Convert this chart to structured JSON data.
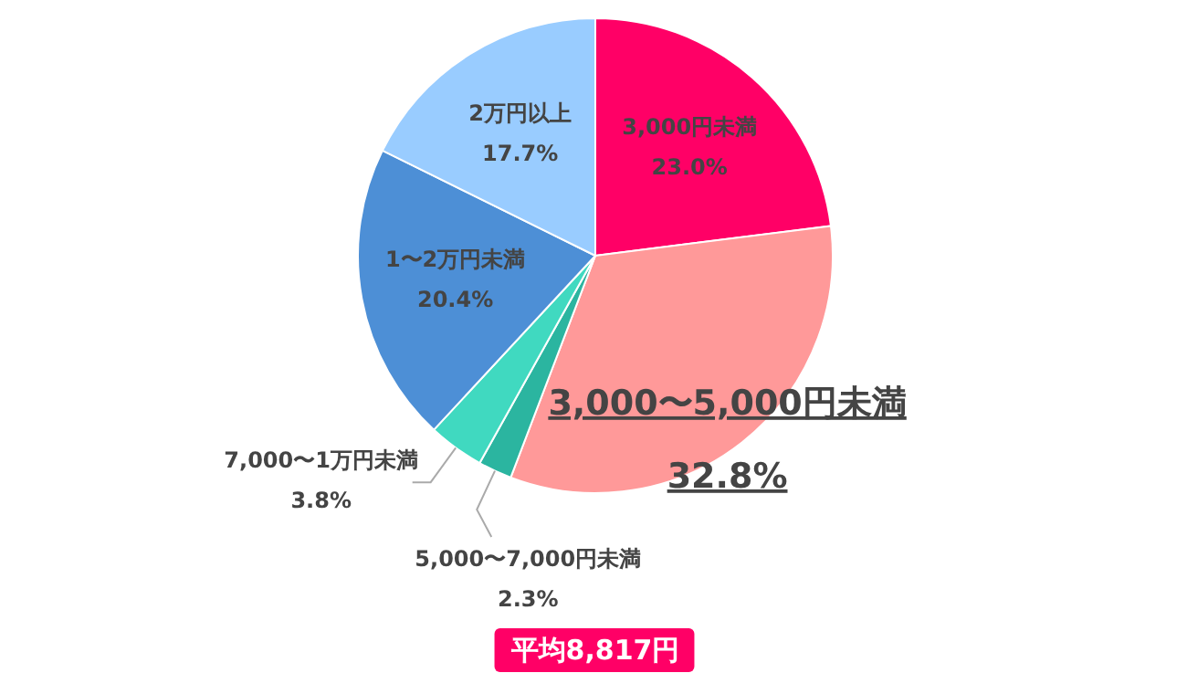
{
  "chart_data": {
    "type": "pie",
    "categories": [
      "3,000円未満",
      "3,000〜5,000円未満",
      "5,000〜7,000円未満",
      "7,000〜1万円未満",
      "1〜2万円未満",
      "2万円以上"
    ],
    "values": [
      23.0,
      32.8,
      2.3,
      3.8,
      20.4,
      17.7
    ],
    "value_labels": [
      "23.0%",
      "32.8%",
      "2.3%",
      "3.8%",
      "20.4%",
      "17.7%"
    ],
    "colors": [
      "#ff0066",
      "#ff9999",
      "#2bb5a0",
      "#40d9c0",
      "#4d8fd6",
      "#99ccff"
    ],
    "annotations": [
      "平均8,817円"
    ]
  }
}
